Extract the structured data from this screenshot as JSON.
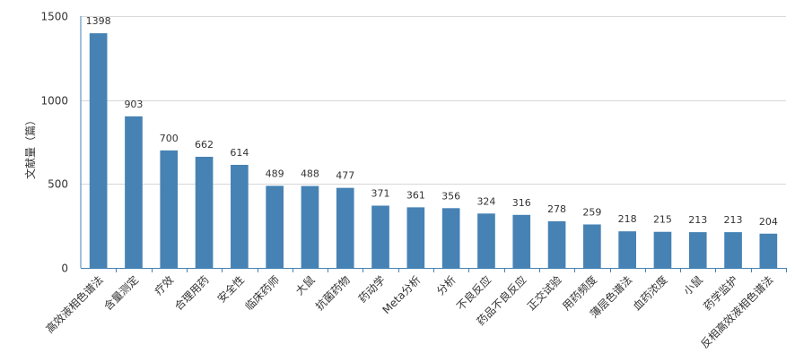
{
  "chart_data": {
    "type": "bar",
    "ylabel": "文献量（篇）",
    "ylim": [
      0,
      1500
    ],
    "yticks": [
      0,
      500,
      1000,
      1500
    ],
    "grid": true,
    "bar_color": "#4682b4",
    "grid_color": "#d8d8d8",
    "categories": [
      "高效液相色谱法",
      "含量测定",
      "疗效",
      "合理用药",
      "安全性",
      "临床药师",
      "大鼠",
      "抗菌药物",
      "药动学",
      "Meta分析",
      "分析",
      "不良反应",
      "药品不良反应",
      "正交试验",
      "用药频度",
      "薄层色谱法",
      "血药浓度",
      "小鼠",
      "药学监护",
      "反相高效液相色谱法"
    ],
    "values": [
      1398,
      903,
      700,
      662,
      614,
      489,
      488,
      477,
      371,
      361,
      356,
      324,
      316,
      278,
      259,
      218,
      215,
      213,
      213,
      204
    ],
    "data_labels": [
      "1398",
      "903",
      "700",
      "662",
      "614",
      "489",
      "488",
      "477",
      "371",
      "361",
      "356",
      "324",
      "316",
      "278",
      "259",
      "218",
      "215",
      "213",
      "213",
      "204"
    ],
    "ytick_labels": [
      "0",
      "500",
      "1000",
      "1500"
    ]
  }
}
